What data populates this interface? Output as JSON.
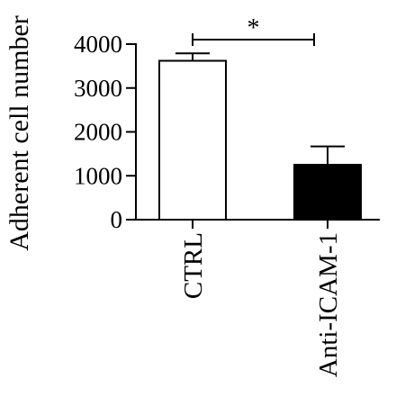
{
  "chart_data": {
    "type": "bar",
    "categories": [
      "CTRL",
      "Anti-ICAM-1"
    ],
    "values": [
      3620,
      1250
    ],
    "errors": [
      170,
      420
    ],
    "bar_colors": [
      "#ffffff",
      "#000000"
    ],
    "edge_color": "#000000",
    "ylabel": "Adherent cell number",
    "xlabel": "",
    "ylim": [
      0,
      4000
    ],
    "yticks": [
      0,
      1000,
      2000,
      3000,
      4000
    ],
    "significance": {
      "from": "CTRL",
      "to": "Anti-ICAM-1",
      "label": "*"
    },
    "grid": false,
    "legend": "none"
  }
}
